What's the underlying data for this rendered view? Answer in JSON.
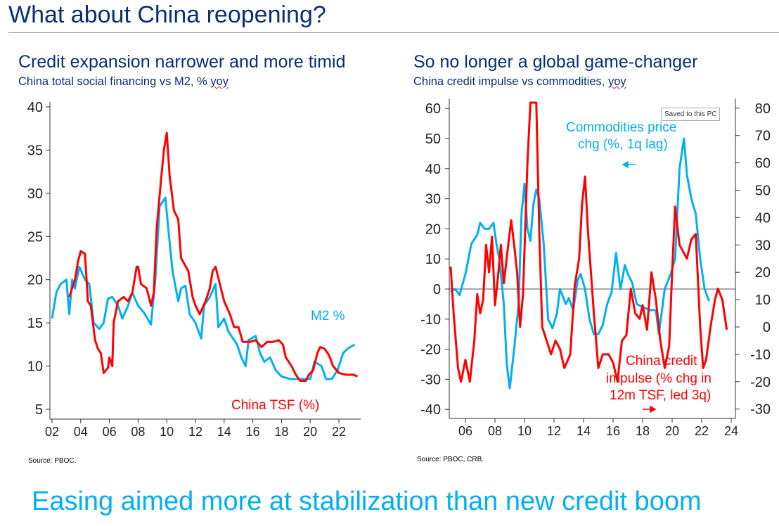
{
  "slide": {
    "title": "What about China reopening?",
    "footer": "Easing aimed more at stabilization than new credit boom",
    "badge": "Saved to this PC"
  },
  "colors": {
    "title": "#0b2e78",
    "m2": "#00b0f0",
    "tsf": "#ff0000",
    "footer": "#00b0f0"
  },
  "chart_data": [
    {
      "type": "line",
      "title": "Credit expansion narrower and more timid",
      "subtitle_main": "China total social financing vs M2, % ",
      "subtitle_tail": "yoy",
      "source": "Source: PBOC.",
      "xlim": [
        2001.8,
        2024
      ],
      "ylim": [
        5,
        40
      ],
      "yticks": [
        "5",
        "10",
        "15",
        "20",
        "25",
        "30",
        "35",
        "40"
      ],
      "ytick_values": [
        5,
        10,
        15,
        20,
        25,
        30,
        35,
        40
      ],
      "xticks": [
        "02",
        "04",
        "06",
        "08",
        "10",
        "12",
        "14",
        "16",
        "18",
        "20",
        "22"
      ],
      "xtick_values": [
        2002,
        2004,
        2006,
        2008,
        2010,
        2012,
        2014,
        2016,
        2018,
        2020,
        2022
      ],
      "series": [
        {
          "name": "M2 %",
          "color": "#00b0f0",
          "x": [
            2002.0,
            2002.3,
            2002.6,
            2003.0,
            2003.2,
            2003.4,
            2003.6,
            2003.9,
            2004.3,
            2004.6,
            2004.9,
            2005.3,
            2005.6,
            2005.9,
            2006.2,
            2006.6,
            2006.9,
            2007.3,
            2007.6,
            2008.0,
            2008.4,
            2008.9,
            2009.2,
            2009.5,
            2009.9,
            2010.1,
            2010.4,
            2010.8,
            2011.0,
            2011.3,
            2011.6,
            2012.0,
            2012.4,
            2012.6,
            2013.0,
            2013.4,
            2013.6,
            2014.0,
            2014.3,
            2014.9,
            2015.2,
            2015.5,
            2015.7,
            2016.2,
            2016.5,
            2016.8,
            2017.2,
            2017.6,
            2018.0,
            2018.6,
            2019.0,
            2019.5,
            2020.0,
            2020.3,
            2020.8,
            2021.1,
            2021.5,
            2021.9,
            2022.3,
            2022.6,
            2023.1
          ],
          "y": [
            15.5,
            18.5,
            19.5,
            20,
            16,
            20,
            19,
            21.5,
            20,
            19.5,
            15,
            14.3,
            15,
            17.8,
            18,
            17,
            15.5,
            17,
            18.5,
            17,
            16.2,
            14.8,
            20,
            28.5,
            29.5,
            26,
            21,
            17.5,
            19,
            19.3,
            16,
            15,
            13.2,
            17,
            18,
            19.5,
            14.5,
            15.5,
            14,
            12.5,
            11,
            10,
            13,
            13.5,
            11.5,
            10.5,
            11,
            9.5,
            8.8,
            8.5,
            8.5,
            8.5,
            8.5,
            10.5,
            10,
            8.5,
            8.5,
            9.5,
            11.5,
            12,
            12.5
          ]
        },
        {
          "name": "China TSF (%)",
          "color": "#ff0000",
          "x": [
            2003.2,
            2003.6,
            2003.8,
            2004.0,
            2004.3,
            2004.5,
            2004.7,
            2005.0,
            2005.2,
            2005.4,
            2005.6,
            2005.9,
            2006.0,
            2006.2,
            2006.3,
            2006.6,
            2007.0,
            2007.3,
            2007.6,
            2007.9,
            2008.0,
            2008.2,
            2008.6,
            2008.9,
            2009.1,
            2009.3,
            2009.6,
            2009.8,
            2010.0,
            2010.2,
            2010.5,
            2010.8,
            2011.0,
            2011.5,
            2011.8,
            2012.0,
            2012.3,
            2012.7,
            2013.0,
            2013.2,
            2013.4,
            2013.7,
            2014.0,
            2014.4,
            2014.7,
            2015.0,
            2015.3,
            2015.8,
            2016.2,
            2016.6,
            2017.0,
            2017.4,
            2017.8,
            2018.1,
            2018.3,
            2018.7,
            2019.0,
            2019.3,
            2019.7,
            2019.9,
            2020.2,
            2020.5,
            2020.7,
            2021.0,
            2021.3,
            2021.6,
            2022.0,
            2022.5,
            2023.0,
            2023.3
          ],
          "y": [
            18,
            20,
            22,
            23.3,
            23,
            17.5,
            17,
            13,
            12,
            11.5,
            9.2,
            9.8,
            11,
            10,
            15,
            17.5,
            18,
            17.5,
            18.5,
            21.5,
            21.5,
            19.5,
            19,
            17,
            18.5,
            26,
            31.5,
            35,
            37,
            32,
            28,
            27,
            22.5,
            21,
            18,
            17,
            16,
            17.5,
            19,
            21,
            21.5,
            19.5,
            17.5,
            16,
            14.5,
            14.5,
            12.8,
            12.8,
            13,
            12.2,
            12.8,
            12.8,
            13,
            12.5,
            11,
            10,
            9,
            8.3,
            8.3,
            9,
            9.5,
            11.5,
            12.2,
            12,
            11.3,
            10,
            9.2,
            9,
            9,
            8.8
          ]
        }
      ]
    },
    {
      "type": "line",
      "title": "So no longer a global game-changer",
      "subtitle_main": "China credit impulse vs commodities, ",
      "subtitle_tail": "yoy",
      "source": "Source: PBOC, CRB.",
      "xlim": [
        2004.9,
        2024.3
      ],
      "ylim_left": [
        -40,
        60
      ],
      "ylim_right": [
        -30,
        80
      ],
      "yticks_left": [
        "-40",
        "-30",
        "-20",
        "-10",
        "0",
        "10",
        "20",
        "30",
        "40",
        "50",
        "60"
      ],
      "ytick_values_left": [
        -40,
        -30,
        -20,
        -10,
        0,
        10,
        20,
        30,
        40,
        50,
        60
      ],
      "yticks_right": [
        "-30",
        "-20",
        "-10",
        "0",
        "10",
        "20",
        "30",
        "40",
        "50",
        "60",
        "70",
        "80"
      ],
      "ytick_values_right": [
        -30,
        -20,
        -10,
        0,
        10,
        20,
        30,
        40,
        50,
        60,
        70,
        80
      ],
      "xticks": [
        "06",
        "08",
        "10",
        "12",
        "14",
        "16",
        "18",
        "20",
        "22",
        "24"
      ],
      "xtick_values": [
        2006,
        2008,
        2010,
        2012,
        2014,
        2016,
        2018,
        2020,
        2022,
        2024
      ],
      "annotations": {
        "commodities": [
          "Commodities price",
          "chg (%, 1q lag)"
        ],
        "credit": [
          "China credit",
          "impulse (% chg in",
          "12m TSF, led 3q)"
        ]
      },
      "series": [
        {
          "name": "Commodities price chg (%, 1q lag)",
          "axis": "left",
          "color": "#00b0f0",
          "x": [
            2005.0,
            2005.3,
            2005.6,
            2006.0,
            2006.4,
            2006.8,
            2007.0,
            2007.3,
            2007.6,
            2007.9,
            2008.1,
            2008.3,
            2008.6,
            2008.8,
            2009.0,
            2009.3,
            2009.6,
            2009.8,
            2010.0,
            2010.2,
            2010.4,
            2010.6,
            2010.8,
            2011.0,
            2011.3,
            2011.6,
            2011.9,
            2012.2,
            2012.4,
            2012.8,
            2013.0,
            2013.3,
            2013.6,
            2013.8,
            2014.1,
            2014.4,
            2014.7,
            2015.0,
            2015.3,
            2015.6,
            2015.9,
            2016.2,
            2016.5,
            2016.8,
            2017.0,
            2017.3,
            2017.6,
            2018.0,
            2018.5,
            2018.9,
            2019.1,
            2019.5,
            2019.9,
            2020.2,
            2020.5,
            2020.8,
            2021.0,
            2021.3,
            2021.6,
            2021.9,
            2022.2,
            2022.5
          ],
          "y": [
            -1,
            0,
            -2,
            5,
            15,
            18,
            22,
            20,
            20,
            22,
            15,
            10,
            -5,
            -25,
            -33,
            -20,
            -5,
            25,
            35,
            20,
            16,
            28,
            33,
            30,
            15,
            -10,
            -13,
            -8,
            0,
            -5,
            -3,
            -7,
            3,
            5,
            0,
            -10,
            -15,
            -15,
            -12,
            -5,
            -1,
            12,
            0,
            8,
            5,
            2,
            -5,
            -6,
            -7,
            -7,
            -15,
            0,
            5,
            10,
            40,
            50,
            38,
            30,
            25,
            10,
            0,
            -4
          ]
        },
        {
          "name": "China credit impulse (% chg in 12m TSF, led 3q)",
          "axis": "right",
          "color": "#ff0000",
          "x": [
            2005.0,
            2005.2,
            2005.5,
            2005.7,
            2006.0,
            2006.3,
            2006.6,
            2006.8,
            2007.0,
            2007.2,
            2007.4,
            2007.6,
            2007.8,
            2008.0,
            2008.2,
            2008.4,
            2008.6,
            2008.9,
            2009.1,
            2009.3,
            2009.5,
            2009.7,
            2009.9,
            2010.2,
            2010.4,
            2010.8,
            2011.0,
            2011.2,
            2011.5,
            2011.8,
            2012.1,
            2012.4,
            2012.7,
            2013.1,
            2013.4,
            2013.7,
            2013.9,
            2014.1,
            2014.3,
            2014.7,
            2015.0,
            2015.3,
            2015.7,
            2016.0,
            2016.3,
            2016.6,
            2016.9,
            2017.2,
            2017.5,
            2017.8,
            2018.0,
            2018.3,
            2018.6,
            2018.9,
            2019.2,
            2019.5,
            2019.8,
            2020.0,
            2020.2,
            2020.5,
            2020.7,
            2021.0,
            2021.3,
            2021.6,
            2021.9,
            2022.1,
            2022.3,
            2022.6,
            2022.9,
            2023.1,
            2023.4,
            2023.7
          ],
          "y": [
            22,
            5,
            -15,
            -20,
            -12,
            -20,
            -5,
            12,
            5,
            10,
            30,
            20,
            33,
            8,
            18,
            30,
            16,
            30,
            39,
            30,
            20,
            0,
            12,
            60,
            82,
            82,
            35,
            0,
            -5,
            -10,
            -5,
            -8,
            -15,
            -10,
            15,
            25,
            45,
            55,
            35,
            5,
            -15,
            -10,
            -10,
            -13,
            -20,
            -5,
            -3,
            14,
            5,
            3,
            8,
            -1,
            20,
            10,
            -5,
            -15,
            -7,
            20,
            44,
            30,
            28,
            25,
            32,
            34,
            0,
            -15,
            -12,
            0,
            10,
            14,
            10,
            -1
          ]
        }
      ]
    }
  ]
}
